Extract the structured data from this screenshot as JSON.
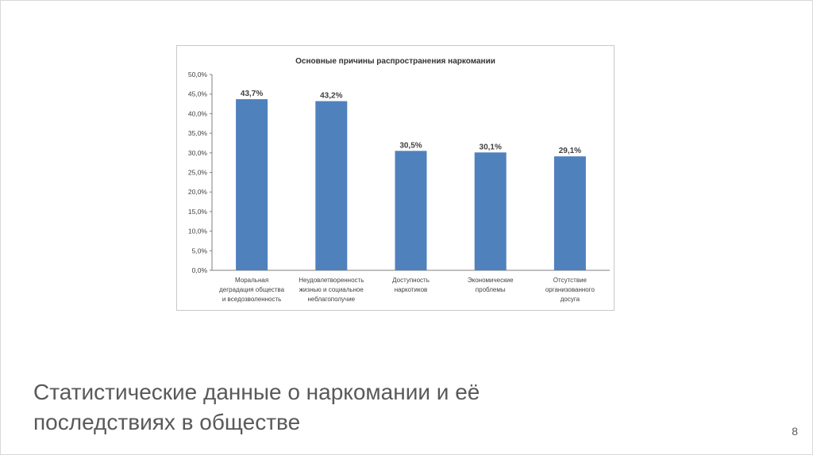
{
  "slide": {
    "title_line1": "Статистические данные о наркомании и её",
    "title_line2": "последствиях в обществе",
    "page_number": "8"
  },
  "chart_data": {
    "type": "bar",
    "title": "Основные причины распространения наркомании",
    "xlabel": "",
    "ylabel": "",
    "ylim": [
      0,
      50
    ],
    "yticks": [
      "0,0%",
      "5,0%",
      "10,0%",
      "15,0%",
      "20,0%",
      "25,0%",
      "30,0%",
      "35,0%",
      "40,0%",
      "45,0%",
      "50,0%"
    ],
    "grid": false,
    "legend": "none",
    "bar_color": "#4f81bd",
    "categories": [
      [
        "Моральная",
        "деградация общества",
        "и вседозволенность"
      ],
      [
        "Неудовлетворенность",
        "жизнью и социальное",
        "неблагополучие"
      ],
      [
        "Доступность",
        "наркотиков"
      ],
      [
        "Экономические",
        "проблемы"
      ],
      [
        "Отсутствие",
        "организованного",
        "досуга"
      ]
    ],
    "values": [
      43.7,
      43.2,
      30.5,
      30.1,
      29.1
    ],
    "data_labels": [
      "43,7%",
      "43,2%",
      "30,5%",
      "30,1%",
      "29,1%"
    ]
  }
}
